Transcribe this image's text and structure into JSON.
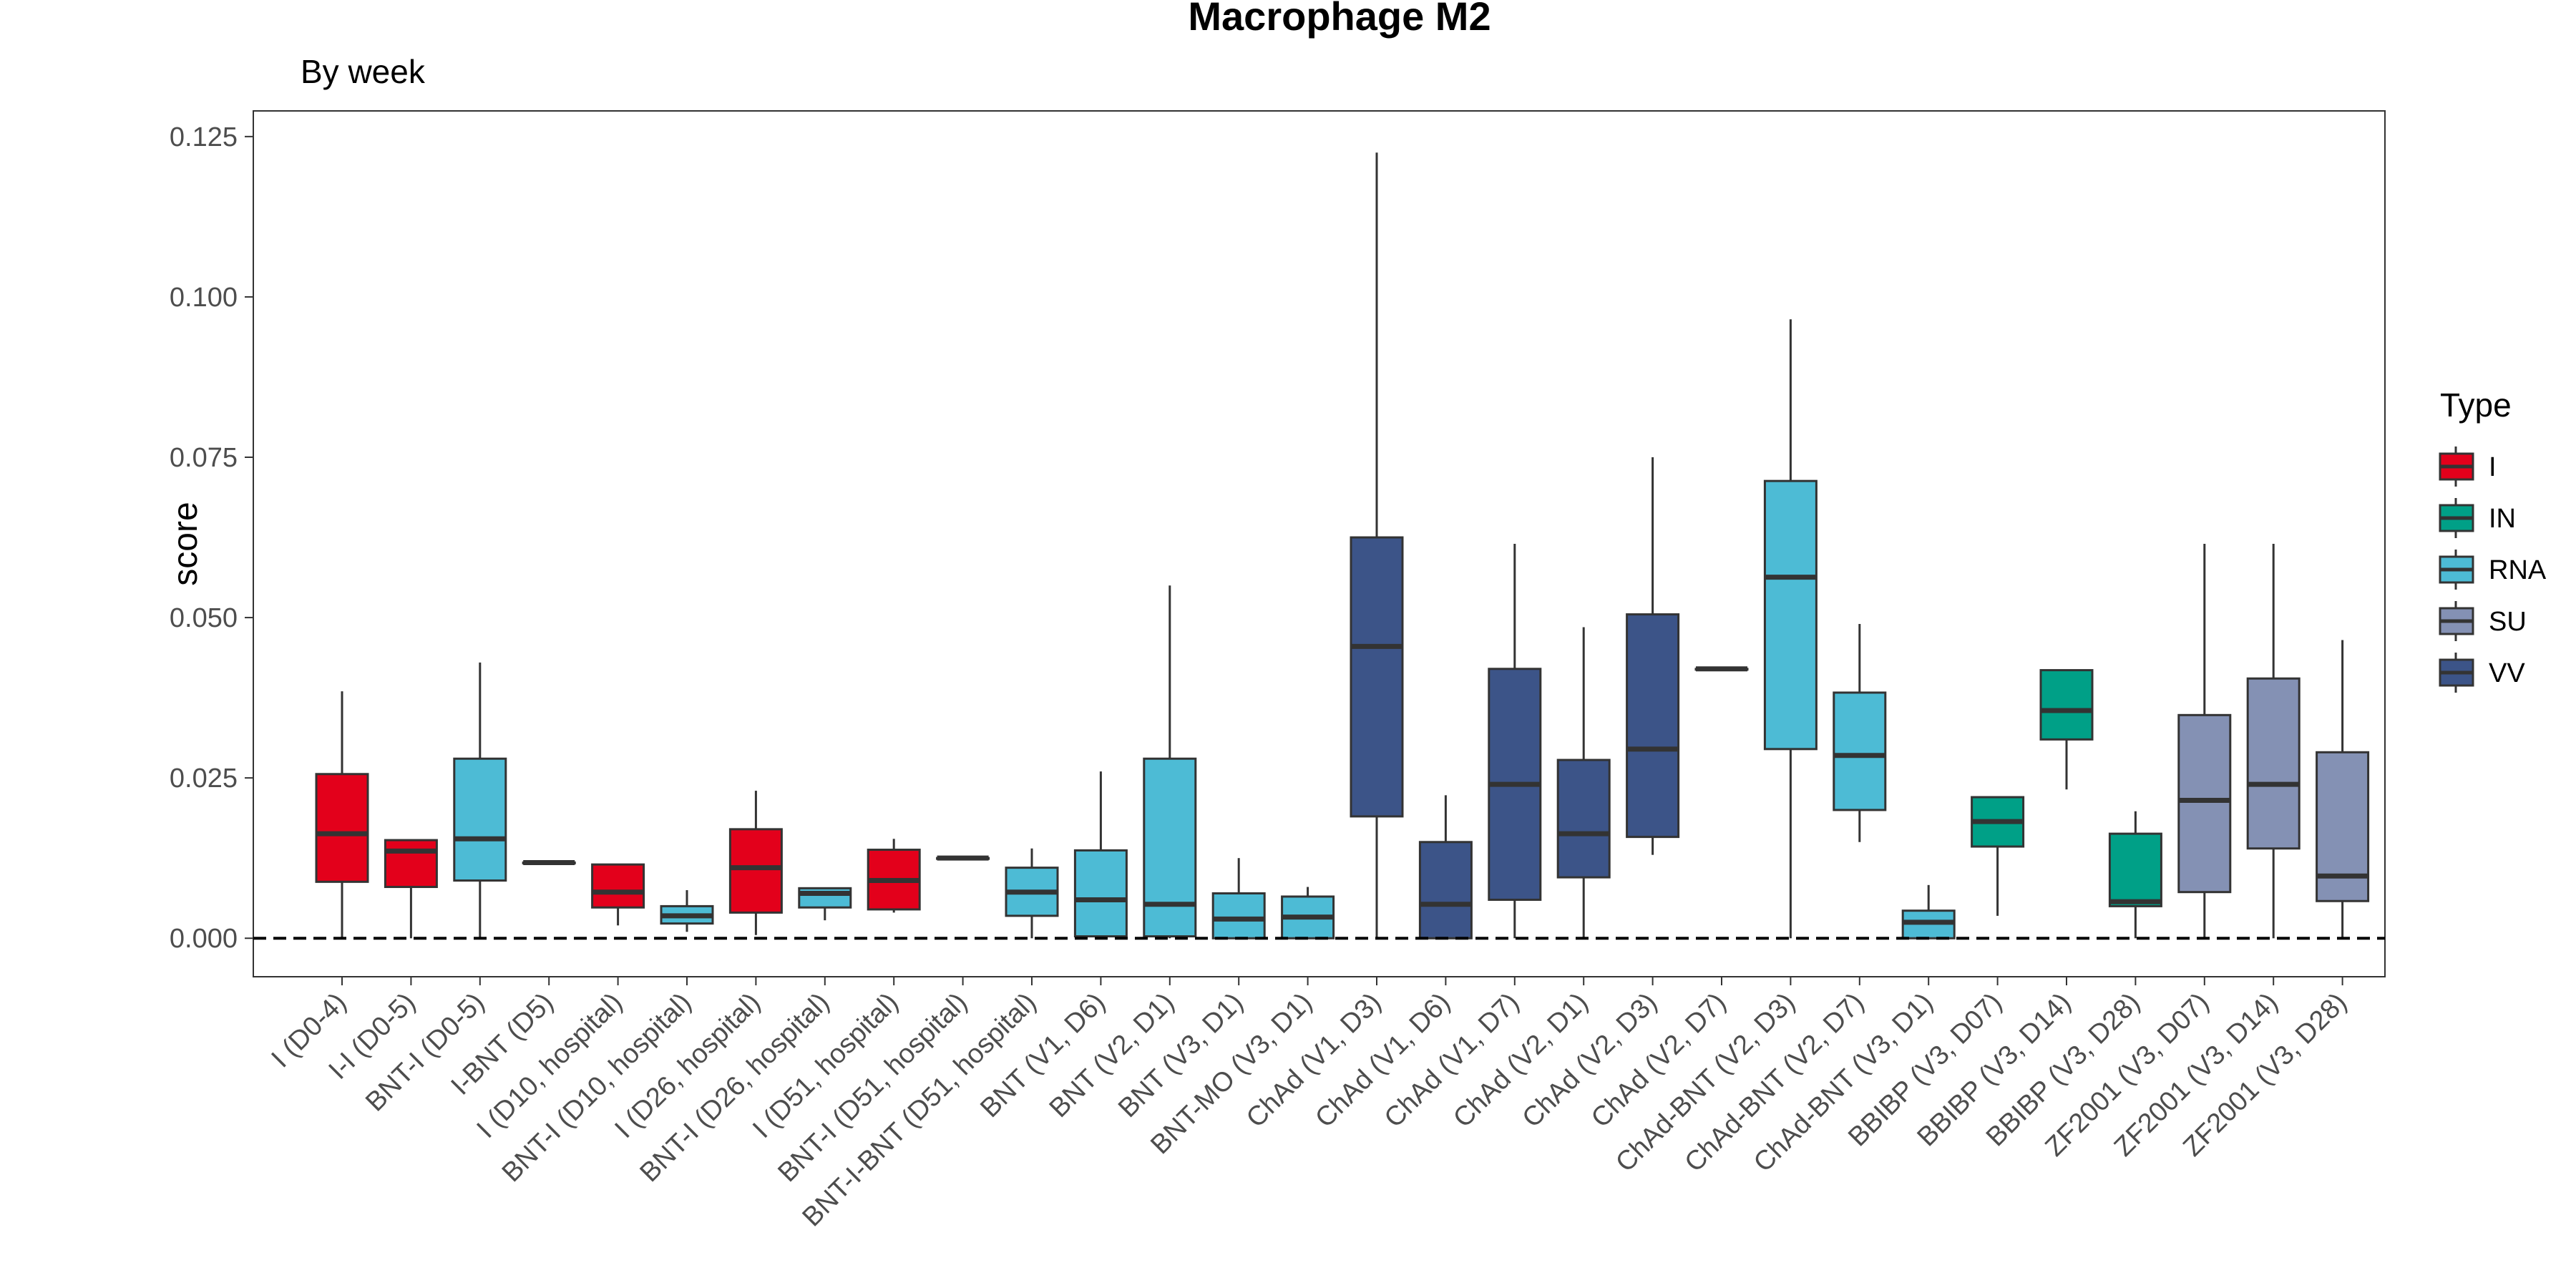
{
  "chart_data": {
    "type": "box",
    "title": "Macrophage M2",
    "subtitle": "By week",
    "xlabel": "",
    "ylabel": "score",
    "ylim": [
      -0.006,
      0.129
    ],
    "yticks": [
      "0.000",
      "0.025",
      "0.050",
      "0.075",
      "0.100",
      "0.125"
    ],
    "reference_line": {
      "y": 0.0,
      "style": "dashed"
    },
    "grid": false,
    "legend": {
      "title": "Type",
      "position": "right",
      "items": [
        {
          "label": "I",
          "color": "#e3001b"
        },
        {
          "label": "IN",
          "color": "#00a087"
        },
        {
          "label": "RNA",
          "color": "#4dbbd5"
        },
        {
          "label": "SU",
          "color": "#8491b4"
        },
        {
          "label": "VV",
          "color": "#3c5488"
        }
      ]
    },
    "categories": [
      "I (D0-4)",
      "I-I (D0-5)",
      "BNT-I (D0-5)",
      "I-BNT (D5)",
      "I (D10, hospital)",
      "BNT-I (D10, hospital)",
      "I (D26, hospital)",
      "BNT-I (D26, hospital)",
      "I (D51, hospital)",
      "BNT-I (D51, hospital)",
      "BNT-I-BNT (D51, hospital)",
      "BNT (V1, D6)",
      "BNT (V2, D1)",
      "BNT (V3, D1)",
      "BNT-MO (V3, D1)",
      "ChAd (V1, D3)",
      "ChAd (V1, D6)",
      "ChAd (V1, D7)",
      "ChAd (V2, D1)",
      "ChAd (V2, D3)",
      "ChAd (V2, D7)",
      "ChAd-BNT (V2, D3)",
      "ChAd-BNT (V2, D7)",
      "ChAd-BNT (V3, D1)",
      "BBIBP (V3, D07)",
      "BBIBP (V3, D14)",
      "BBIBP (V3, D28)",
      "ZF2001 (V3, D07)",
      "ZF2001 (V3, D14)",
      "ZF2001 (V3, D28)"
    ],
    "boxes": [
      {
        "type": "I",
        "min": 0.0,
        "q1": 0.0088,
        "median": 0.0163,
        "q3": 0.0256,
        "max": 0.0385
      },
      {
        "type": "I",
        "min": 0.0,
        "q1": 0.008,
        "median": 0.0136,
        "q3": 0.0153,
        "max": 0.0153
      },
      {
        "type": "RNA",
        "min": 0.0,
        "q1": 0.009,
        "median": 0.0155,
        "q3": 0.028,
        "max": 0.043
      },
      {
        "type": "I",
        "min": 0.0118,
        "q1": 0.0118,
        "median": 0.0118,
        "q3": 0.0118,
        "max": 0.0118
      },
      {
        "type": "I",
        "min": 0.002,
        "q1": 0.0048,
        "median": 0.0072,
        "q3": 0.0115,
        "max": 0.0115
      },
      {
        "type": "RNA",
        "min": 0.001,
        "q1": 0.0023,
        "median": 0.0035,
        "q3": 0.005,
        "max": 0.0075
      },
      {
        "type": "I",
        "min": 0.0005,
        "q1": 0.004,
        "median": 0.011,
        "q3": 0.017,
        "max": 0.023
      },
      {
        "type": "RNA",
        "min": 0.0028,
        "q1": 0.0048,
        "median": 0.007,
        "q3": 0.0078,
        "max": 0.0078
      },
      {
        "type": "I",
        "min": 0.004,
        "q1": 0.0045,
        "median": 0.009,
        "q3": 0.0138,
        "max": 0.0155
      },
      {
        "type": "RNA",
        "min": 0.0125,
        "q1": 0.0125,
        "median": 0.0125,
        "q3": 0.0125,
        "max": 0.0125
      },
      {
        "type": "RNA",
        "min": 0.0,
        "q1": 0.0035,
        "median": 0.0072,
        "q3": 0.011,
        "max": 0.014
      },
      {
        "type": "RNA",
        "min": 0.0,
        "q1": 0.0003,
        "median": 0.006,
        "q3": 0.0137,
        "max": 0.026
      },
      {
        "type": "RNA",
        "min": 0.0,
        "q1": 0.0003,
        "median": 0.0053,
        "q3": 0.028,
        "max": 0.055
      },
      {
        "type": "RNA",
        "min": 0.0,
        "q1": 0.0,
        "median": 0.003,
        "q3": 0.007,
        "max": 0.0125
      },
      {
        "type": "RNA",
        "min": 0.0,
        "q1": 0.0,
        "median": 0.0033,
        "q3": 0.0065,
        "max": 0.008
      },
      {
        "type": "VV",
        "min": 0.0,
        "q1": 0.019,
        "median": 0.0455,
        "q3": 0.0625,
        "max": 0.1225
      },
      {
        "type": "VV",
        "min": 0.0,
        "q1": 0.0,
        "median": 0.0053,
        "q3": 0.015,
        "max": 0.0223
      },
      {
        "type": "VV",
        "min": 0.0,
        "q1": 0.006,
        "median": 0.024,
        "q3": 0.042,
        "max": 0.0615
      },
      {
        "type": "VV",
        "min": 0.0,
        "q1": 0.0095,
        "median": 0.0163,
        "q3": 0.0278,
        "max": 0.0485
      },
      {
        "type": "VV",
        "min": 0.013,
        "q1": 0.0158,
        "median": 0.0295,
        "q3": 0.0505,
        "max": 0.075
      },
      {
        "type": "VV",
        "min": 0.042,
        "q1": 0.042,
        "median": 0.042,
        "q3": 0.042,
        "max": 0.042
      },
      {
        "type": "RNA",
        "min": 0.0,
        "q1": 0.0295,
        "median": 0.0563,
        "q3": 0.0713,
        "max": 0.0965
      },
      {
        "type": "RNA",
        "min": 0.015,
        "q1": 0.02,
        "median": 0.0285,
        "q3": 0.0383,
        "max": 0.049
      },
      {
        "type": "RNA",
        "min": 0.0,
        "q1": 0.0,
        "median": 0.0025,
        "q3": 0.0043,
        "max": 0.0083
      },
      {
        "type": "IN",
        "min": 0.0035,
        "q1": 0.0143,
        "median": 0.0182,
        "q3": 0.022,
        "max": 0.022
      },
      {
        "type": "IN",
        "min": 0.0232,
        "q1": 0.031,
        "median": 0.0355,
        "q3": 0.0418,
        "max": 0.0418
      },
      {
        "type": "IN",
        "min": 0.0,
        "q1": 0.005,
        "median": 0.0057,
        "q3": 0.0163,
        "max": 0.0198
      },
      {
        "type": "SU",
        "min": 0.0,
        "q1": 0.0072,
        "median": 0.0215,
        "q3": 0.0348,
        "max": 0.0615
      },
      {
        "type": "SU",
        "min": 0.0,
        "q1": 0.014,
        "median": 0.024,
        "q3": 0.0405,
        "max": 0.0615
      },
      {
        "type": "SU",
        "min": 0.0,
        "q1": 0.0058,
        "median": 0.0097,
        "q3": 0.029,
        "max": 0.0465
      }
    ]
  }
}
